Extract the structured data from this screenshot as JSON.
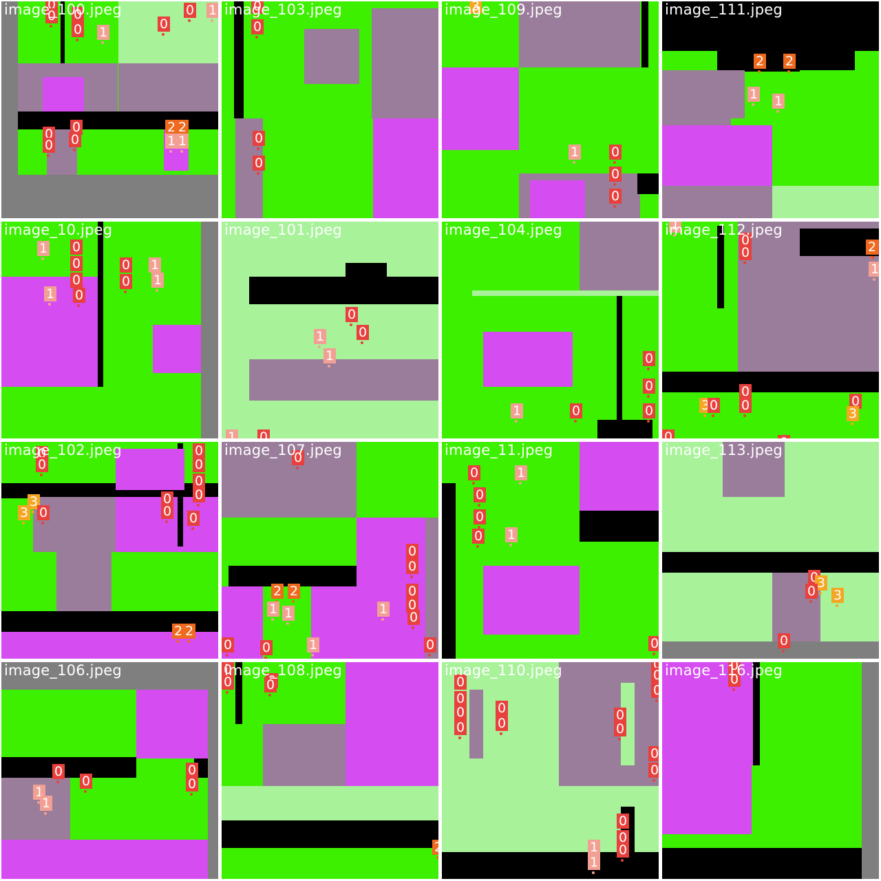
{
  "colors": {
    "class_0": "#e8403c",
    "class_1": "#f3a094",
    "class_2": "#ef6a1e",
    "class_3": "#f5a623",
    "pad": "#7f7f7f",
    "lime": "#3cf000",
    "magenta": "#d54cf0",
    "pale_green": "#a8f29a",
    "mauve": "#9a7d9a",
    "black": "#000000"
  },
  "tiles": [
    {
      "title": "image_100.jpeg",
      "labels": [
        {
          "t": "0",
          "c": 0
        },
        {
          "t": "0",
          "c": 0
        },
        {
          "t": "0",
          "c": 0
        },
        {
          "t": "0",
          "c": 0
        },
        {
          "t": "1",
          "c": 1
        },
        {
          "t": "0",
          "c": 0
        },
        {
          "t": "0",
          "c": 0
        },
        {
          "t": "1",
          "c": 1
        },
        {
          "t": "0",
          "c": 0
        },
        {
          "t": "0",
          "c": 0
        },
        {
          "t": "0",
          "c": 0
        },
        {
          "t": "0",
          "c": 0
        },
        {
          "t": "2",
          "c": 2
        },
        {
          "t": "2",
          "c": 2
        },
        {
          "t": "1",
          "c": 1
        },
        {
          "t": "1",
          "c": 1
        }
      ]
    },
    {
      "title": "image_103.jpeg",
      "labels": [
        {
          "t": "0",
          "c": 0
        },
        {
          "t": "0",
          "c": 0
        },
        {
          "t": "0",
          "c": 0
        },
        {
          "t": "0",
          "c": 0
        }
      ]
    },
    {
      "title": "image_109.jpeg",
      "labels": [
        {
          "t": "3",
          "c": 3
        },
        {
          "t": "1",
          "c": 1
        },
        {
          "t": "0",
          "c": 0
        },
        {
          "t": "0",
          "c": 0
        },
        {
          "t": "0",
          "c": 0
        }
      ]
    },
    {
      "title": "image_111.jpeg",
      "labels": [
        {
          "t": "2",
          "c": 2
        },
        {
          "t": "2",
          "c": 2
        },
        {
          "t": "1",
          "c": 1
        },
        {
          "t": "1",
          "c": 1
        }
      ]
    },
    {
      "title": "image_10.jpeg",
      "labels": [
        {
          "t": "1",
          "c": 1
        },
        {
          "t": "0",
          "c": 0
        },
        {
          "t": "0",
          "c": 0
        },
        {
          "t": "0",
          "c": 0
        },
        {
          "t": "1",
          "c": 1
        },
        {
          "t": "0",
          "c": 0
        },
        {
          "t": "0",
          "c": 0
        },
        {
          "t": "0",
          "c": 0
        },
        {
          "t": "1",
          "c": 1
        },
        {
          "t": "1",
          "c": 1
        }
      ]
    },
    {
      "title": "image_101.jpeg",
      "labels": [
        {
          "t": "0",
          "c": 0
        },
        {
          "t": "1",
          "c": 1
        },
        {
          "t": "0",
          "c": 0
        },
        {
          "t": "1",
          "c": 1
        },
        {
          "t": "1",
          "c": 1
        },
        {
          "t": "0",
          "c": 0
        }
      ]
    },
    {
      "title": "image_104.jpeg",
      "labels": [
        {
          "t": "0",
          "c": 0
        },
        {
          "t": "0",
          "c": 0
        },
        {
          "t": "0",
          "c": 0
        },
        {
          "t": "1",
          "c": 1
        },
        {
          "t": "0",
          "c": 0
        }
      ]
    },
    {
      "title": "image_112.jpeg",
      "labels": [
        {
          "t": "1",
          "c": 1
        },
        {
          "t": "0",
          "c": 0
        },
        {
          "t": "0",
          "c": 0
        },
        {
          "t": "0",
          "c": 0
        },
        {
          "t": "2",
          "c": 2
        },
        {
          "t": "1",
          "c": 1
        },
        {
          "t": "0",
          "c": 0
        },
        {
          "t": "0",
          "c": 0
        },
        {
          "t": "3",
          "c": 3
        },
        {
          "t": "0",
          "c": 0
        },
        {
          "t": "0",
          "c": 0
        },
        {
          "t": "3",
          "c": 3
        },
        {
          "t": "0",
          "c": 0
        },
        {
          "t": "0",
          "c": 0
        }
      ]
    },
    {
      "title": "image_102.jpeg",
      "labels": [
        {
          "t": "0",
          "c": 0
        },
        {
          "t": "0",
          "c": 0
        },
        {
          "t": "3",
          "c": 3
        },
        {
          "t": "0",
          "c": 0
        },
        {
          "t": "3",
          "c": 3
        },
        {
          "t": "0",
          "c": 0
        },
        {
          "t": "0",
          "c": 0
        },
        {
          "t": "0",
          "c": 0
        },
        {
          "t": "0",
          "c": 0
        },
        {
          "t": "0",
          "c": 0
        },
        {
          "t": "0",
          "c": 0
        },
        {
          "t": "0",
          "c": 0
        },
        {
          "t": "2",
          "c": 2
        },
        {
          "t": "2",
          "c": 2
        }
      ]
    },
    {
      "title": "image_107.jpeg",
      "labels": [
        {
          "t": "0",
          "c": 0
        },
        {
          "t": "0",
          "c": 0
        },
        {
          "t": "0",
          "c": 0
        },
        {
          "t": "0",
          "c": 0
        },
        {
          "t": "0",
          "c": 0
        },
        {
          "t": "0",
          "c": 0
        },
        {
          "t": "2",
          "c": 2
        },
        {
          "t": "2",
          "c": 2
        },
        {
          "t": "1",
          "c": 1
        },
        {
          "t": "1",
          "c": 1
        },
        {
          "t": "1",
          "c": 1
        },
        {
          "t": "0",
          "c": 0
        },
        {
          "t": "0",
          "c": 0
        },
        {
          "t": "1",
          "c": 1
        },
        {
          "t": "0",
          "c": 0
        }
      ]
    },
    {
      "title": "image_11.jpeg",
      "labels": [
        {
          "t": "0",
          "c": 0
        },
        {
          "t": "1",
          "c": 1
        },
        {
          "t": "0",
          "c": 0
        },
        {
          "t": "0",
          "c": 0
        },
        {
          "t": "0",
          "c": 0
        },
        {
          "t": "1",
          "c": 1
        },
        {
          "t": "0",
          "c": 0
        }
      ]
    },
    {
      "title": "image_113.jpeg",
      "labels": [
        {
          "t": "0",
          "c": 0
        },
        {
          "t": "3",
          "c": 3
        },
        {
          "t": "0",
          "c": 0
        },
        {
          "t": "3",
          "c": 3
        },
        {
          "t": "0",
          "c": 0
        }
      ]
    },
    {
      "title": "image_106.jpeg",
      "labels": [
        {
          "t": "0",
          "c": 0
        },
        {
          "t": "0",
          "c": 0
        },
        {
          "t": "1",
          "c": 1
        },
        {
          "t": "1",
          "c": 1
        },
        {
          "t": "0",
          "c": 0
        },
        {
          "t": "0",
          "c": 0
        }
      ]
    },
    {
      "title": "image_108.jpeg",
      "labels": [
        {
          "t": "0",
          "c": 0
        },
        {
          "t": "0",
          "c": 0
        },
        {
          "t": "0",
          "c": 0
        },
        {
          "t": "0",
          "c": 0
        },
        {
          "t": "2",
          "c": 2
        }
      ]
    },
    {
      "title": "image_110.jpeg",
      "labels": [
        {
          "t": "0",
          "c": 0
        },
        {
          "t": "0",
          "c": 0
        },
        {
          "t": "0",
          "c": 0
        },
        {
          "t": "0",
          "c": 0
        },
        {
          "t": "0",
          "c": 0
        },
        {
          "t": "0",
          "c": 0
        },
        {
          "t": "0",
          "c": 0
        },
        {
          "t": "0",
          "c": 0
        },
        {
          "t": "0",
          "c": 0
        },
        {
          "t": "0",
          "c": 0
        },
        {
          "t": "0",
          "c": 0
        },
        {
          "t": "0",
          "c": 0
        },
        {
          "t": "0",
          "c": 0
        },
        {
          "t": "1",
          "c": 1
        },
        {
          "t": "1",
          "c": 1
        },
        {
          "t": "0",
          "c": 0
        },
        {
          "t": "0",
          "c": 0
        },
        {
          "t": "0",
          "c": 0
        }
      ]
    },
    {
      "title": "image_116.jpeg",
      "labels": [
        {
          "t": "0",
          "c": 0
        },
        {
          "t": "0",
          "c": 0
        }
      ]
    }
  ]
}
